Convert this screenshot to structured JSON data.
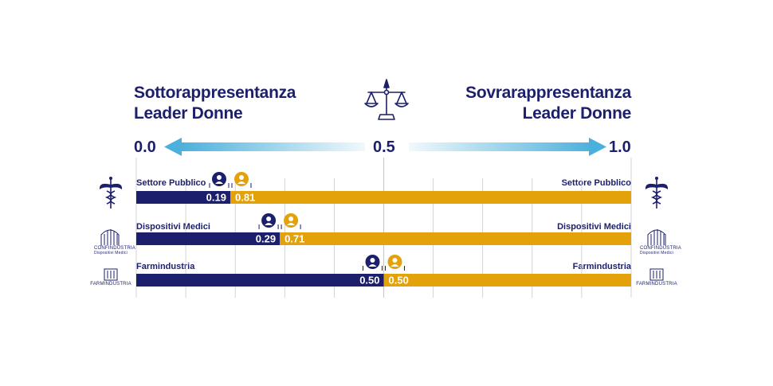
{
  "chart_data": {
    "type": "bar",
    "orientation": "horizontal",
    "stacked": true,
    "xlim": [
      0.0,
      1.0
    ],
    "scale": {
      "left": "0.0",
      "center": "0.5",
      "right": "1.0",
      "left_heading": [
        "Sottorappresentanza",
        "Leader Donne"
      ],
      "right_heading": [
        "Sovrarappresentanza",
        "Leader Donne"
      ]
    },
    "categories": [
      "Settore Pubblico",
      "Dispositivi Medici",
      "Farmindustria"
    ],
    "series": [
      {
        "values": [
          0.19,
          0.29,
          0.5
        ],
        "labels": [
          "0.19",
          "0.29",
          "0.50"
        ],
        "color": "#1c1f6b"
      },
      {
        "values": [
          0.81,
          0.71,
          0.5
        ],
        "labels": [
          "0.81",
          "0.71",
          "0.50"
        ],
        "color": "#e3a10a"
      }
    ],
    "grid": true
  },
  "logos": {
    "confindustria": [
      "CONFINDUSTRIA",
      "Dispositivi Medici"
    ],
    "farmindustria": "FARMINDUSTRIA"
  },
  "colors": {
    "navy": "#1c1f6b",
    "gold": "#e3a10a",
    "arrow_blue": "#4bb0dc",
    "grid": "#c9c9c9"
  }
}
